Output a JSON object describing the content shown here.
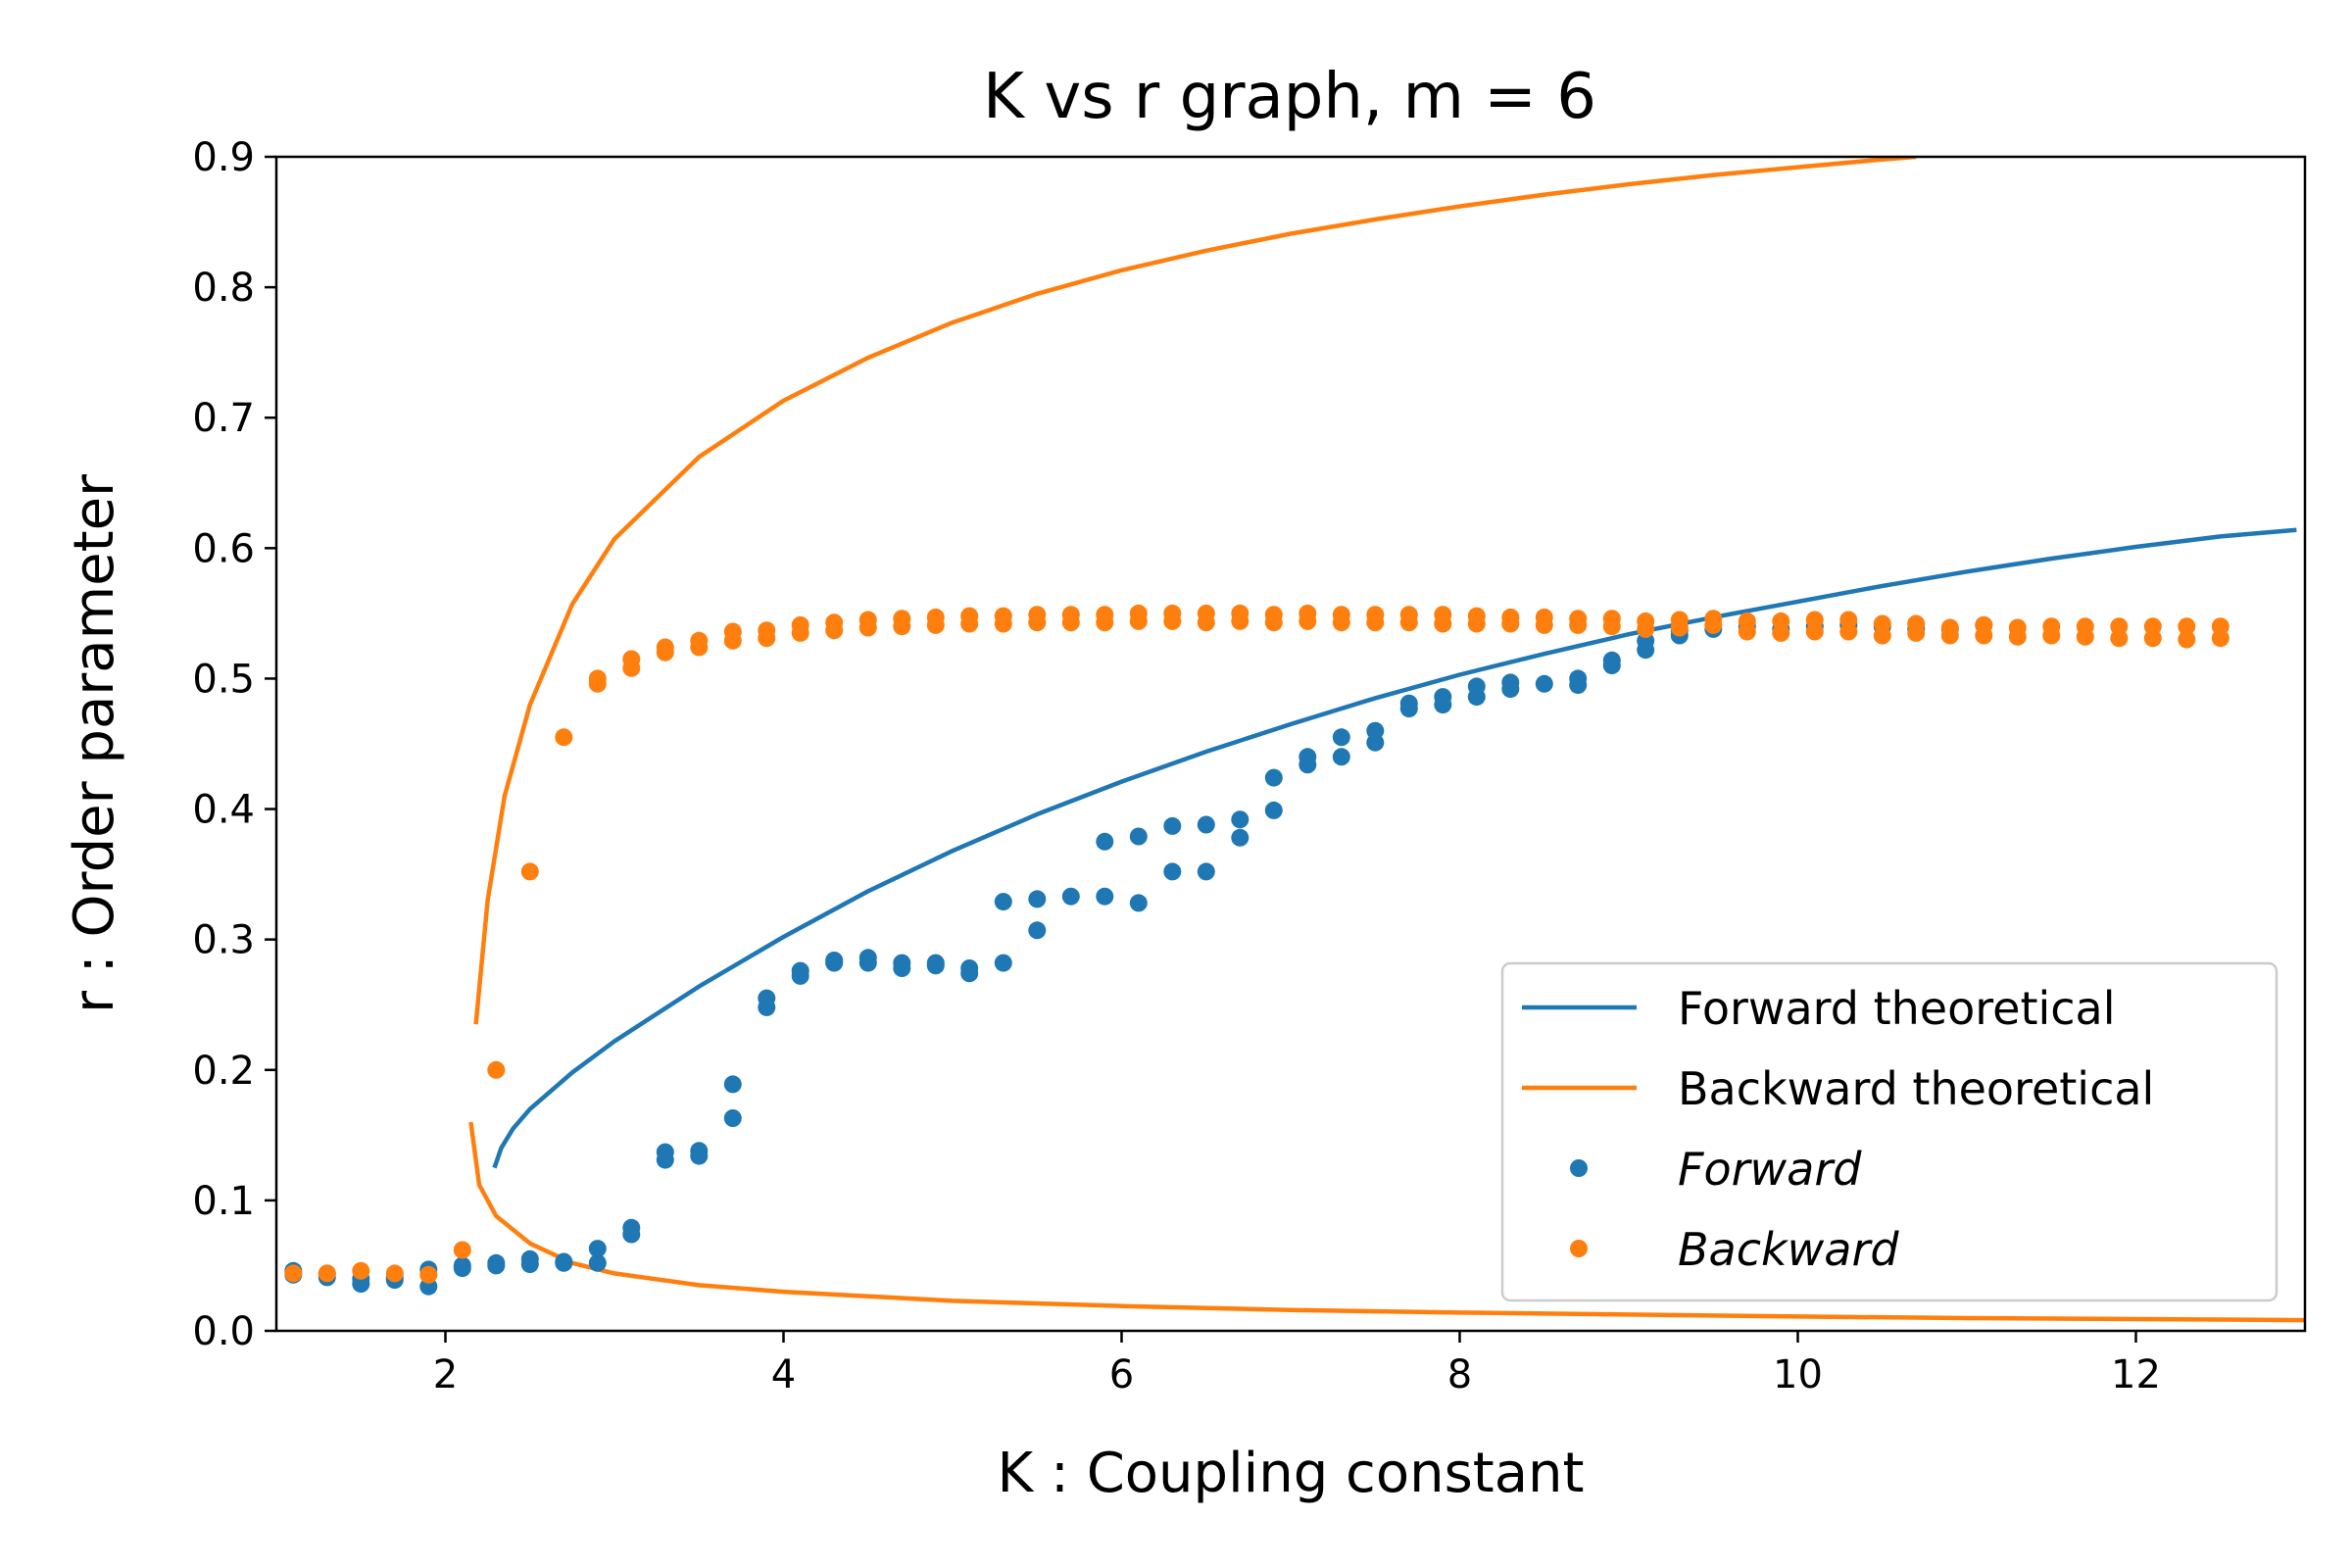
{
  "chart_data": {
    "type": "scatter",
    "title": "K vs r graph, m = 6",
    "xlabel": "K : Coupling constant",
    "ylabel": "r : Order parameter",
    "xlim": [
      1.0,
      13.0
    ],
    "ylim": [
      0.0,
      0.9
    ],
    "xticks": [
      "2",
      "4",
      "6",
      "8",
      "10",
      "12"
    ],
    "yticks": [
      "0.0",
      "0.1",
      "0.2",
      "0.3",
      "0.4",
      "0.5",
      "0.6",
      "0.7",
      "0.8",
      "0.9"
    ],
    "grid": false,
    "legend_position": "lower-right",
    "colors": {
      "forward": "#1f77b4",
      "backward": "#ff7f0e",
      "axes": "#000000",
      "legend_border": "#cccccc"
    },
    "series": [
      {
        "name": "Forward theoretical",
        "kind": "line",
        "color": "#1f77b4",
        "x": [
          2.29,
          2.33,
          2.4,
          2.5,
          2.75,
          3.0,
          3.5,
          4.0,
          4.5,
          5.0,
          5.5,
          6.0,
          6.5,
          7.0,
          7.5,
          8.0,
          8.5,
          9.0,
          9.5,
          10.0,
          10.5,
          11.0,
          11.5,
          12.0,
          12.5,
          12.95
        ],
        "y": [
          0.125,
          0.14,
          0.155,
          0.17,
          0.198,
          0.222,
          0.264,
          0.302,
          0.337,
          0.368,
          0.396,
          0.421,
          0.444,
          0.465,
          0.485,
          0.503,
          0.519,
          0.534,
          0.547,
          0.559,
          0.571,
          0.582,
          0.592,
          0.601,
          0.609,
          0.614
        ]
      },
      {
        "name": "Backward theoretical",
        "kind": "line",
        "color": "#ff7f0e",
        "segments": [
          {
            "x": [
              2.18,
              2.25,
              2.35,
              2.5,
              2.75,
              3.0,
              3.5,
              4.0,
              4.5,
              5.0,
              5.5,
              6.0,
              6.5,
              7.0,
              7.5,
              8.0,
              8.5,
              9.0,
              9.5,
              10.0,
              10.5,
              10.7
            ],
            "y": [
              0.235,
              0.33,
              0.41,
              0.48,
              0.557,
              0.607,
              0.67,
              0.713,
              0.746,
              0.773,
              0.795,
              0.813,
              0.828,
              0.841,
              0.852,
              0.862,
              0.871,
              0.879,
              0.886,
              0.892,
              0.898,
              0.9
            ]
          },
          {
            "x": [
              2.15,
              2.2,
              2.3,
              2.5,
              2.75,
              3.0,
              3.5,
              4.0,
              5.0,
              6.0,
              7.0,
              8.0,
              9.0,
              10.0,
              11.0,
              12.0,
              13.0
            ],
            "y": [
              0.16,
              0.112,
              0.088,
              0.067,
              0.052,
              0.044,
              0.035,
              0.03,
              0.023,
              0.019,
              0.016,
              0.014,
              0.0125,
              0.011,
              0.0098,
              0.009,
              0.0082
            ]
          }
        ]
      },
      {
        "name": "Forward",
        "kind": "points",
        "color": "#1f77b4",
        "x": [
          1.1,
          1.1,
          1.3,
          1.3,
          1.5,
          1.5,
          1.7,
          1.7,
          1.9,
          1.9,
          2.1,
          2.1,
          2.3,
          2.3,
          2.5,
          2.5,
          2.7,
          2.7,
          2.9,
          2.9,
          3.1,
          3.1,
          3.3,
          3.3,
          3.5,
          3.5,
          3.7,
          3.7,
          3.9,
          3.9,
          4.1,
          4.1,
          4.3,
          4.3,
          4.5,
          4.5,
          4.7,
          4.7,
          4.9,
          4.9,
          5.1,
          5.1,
          5.3,
          5.3,
          5.5,
          5.5,
          5.7,
          5.9,
          5.9,
          6.1,
          6.1,
          6.3,
          6.3,
          6.5,
          6.5,
          6.7,
          6.7,
          6.9,
          6.9,
          7.1,
          7.1,
          7.3,
          7.3,
          7.5,
          7.5,
          7.7,
          7.7,
          7.9,
          7.9,
          8.1,
          8.1,
          8.3,
          8.3,
          8.5,
          8.7,
          8.7,
          8.9,
          8.9,
          9.1,
          9.1,
          9.3,
          9.3,
          9.5,
          9.7,
          9.9,
          10.1,
          10.3,
          10.5,
          10.7,
          10.9,
          11.1
        ],
        "y": [
          0.043,
          0.046,
          0.041,
          0.044,
          0.036,
          0.04,
          0.039,
          0.041,
          0.034,
          0.047,
          0.048,
          0.05,
          0.05,
          0.052,
          0.051,
          0.055,
          0.052,
          0.053,
          0.052,
          0.063,
          0.074,
          0.079,
          0.131,
          0.137,
          0.134,
          0.138,
          0.163,
          0.189,
          0.248,
          0.255,
          0.272,
          0.276,
          0.282,
          0.284,
          0.282,
          0.286,
          0.278,
          0.282,
          0.28,
          0.282,
          0.274,
          0.278,
          0.282,
          0.329,
          0.307,
          0.331,
          0.333,
          0.333,
          0.375,
          0.328,
          0.379,
          0.352,
          0.387,
          0.352,
          0.388,
          0.378,
          0.392,
          0.399,
          0.424,
          0.434,
          0.44,
          0.44,
          0.455,
          0.451,
          0.46,
          0.477,
          0.481,
          0.48,
          0.486,
          0.486,
          0.494,
          0.492,
          0.497,
          0.496,
          0.495,
          0.5,
          0.51,
          0.514,
          0.522,
          0.529,
          0.533,
          0.537,
          0.538,
          0.54,
          0.538,
          0.54,
          0.541,
          0.54,
          0.538,
          0.538,
          0.541
        ]
      },
      {
        "name": "Backward",
        "kind": "points",
        "color": "#ff7f0e",
        "x": [
          1.1,
          1.3,
          1.5,
          1.7,
          1.9,
          2.1,
          2.3,
          2.5,
          2.7,
          2.9,
          2.9,
          3.1,
          3.1,
          3.3,
          3.3,
          3.5,
          3.5,
          3.7,
          3.7,
          3.9,
          3.9,
          4.1,
          4.1,
          4.3,
          4.3,
          4.5,
          4.5,
          4.7,
          4.7,
          4.9,
          4.9,
          5.1,
          5.1,
          5.3,
          5.3,
          5.5,
          5.5,
          5.7,
          5.7,
          5.9,
          5.9,
          6.1,
          6.1,
          6.3,
          6.3,
          6.5,
          6.5,
          6.7,
          6.7,
          6.9,
          6.9,
          7.1,
          7.1,
          7.3,
          7.3,
          7.5,
          7.5,
          7.7,
          7.7,
          7.9,
          7.9,
          8.1,
          8.1,
          8.3,
          8.3,
          8.5,
          8.5,
          8.7,
          8.7,
          8.9,
          8.9,
          9.1,
          9.1,
          9.3,
          9.3,
          9.5,
          9.5,
          9.7,
          9.7,
          9.9,
          9.9,
          10.1,
          10.1,
          10.3,
          10.3,
          10.5,
          10.5,
          10.7,
          10.7,
          10.9,
          10.9,
          11.1,
          11.1,
          11.3,
          11.3,
          11.5,
          11.5,
          11.7,
          11.7,
          11.9,
          11.9,
          12.1,
          12.1,
          12.3,
          12.3,
          12.5,
          12.5
        ],
        "y": [
          0.044,
          0.044,
          0.046,
          0.044,
          0.043,
          0.062,
          0.2,
          0.352,
          0.455,
          0.496,
          0.5,
          0.508,
          0.515,
          0.52,
          0.524,
          0.524,
          0.529,
          0.529,
          0.536,
          0.531,
          0.537,
          0.535,
          0.541,
          0.537,
          0.543,
          0.539,
          0.545,
          0.54,
          0.546,
          0.541,
          0.547,
          0.542,
          0.548,
          0.542,
          0.548,
          0.543,
          0.549,
          0.543,
          0.549,
          0.543,
          0.549,
          0.544,
          0.55,
          0.544,
          0.55,
          0.543,
          0.55,
          0.544,
          0.55,
          0.543,
          0.549,
          0.544,
          0.55,
          0.543,
          0.549,
          0.543,
          0.549,
          0.543,
          0.549,
          0.542,
          0.549,
          0.542,
          0.548,
          0.542,
          0.547,
          0.541,
          0.547,
          0.541,
          0.546,
          0.54,
          0.546,
          0.538,
          0.544,
          0.539,
          0.545,
          0.541,
          0.546,
          0.536,
          0.544,
          0.535,
          0.544,
          0.536,
          0.545,
          0.536,
          0.545,
          0.533,
          0.542,
          0.535,
          0.542,
          0.533,
          0.539,
          0.533,
          0.541,
          0.532,
          0.539,
          0.533,
          0.54,
          0.532,
          0.54,
          0.531,
          0.54,
          0.531,
          0.54,
          0.53,
          0.54,
          0.531,
          0.54
        ]
      }
    ]
  }
}
